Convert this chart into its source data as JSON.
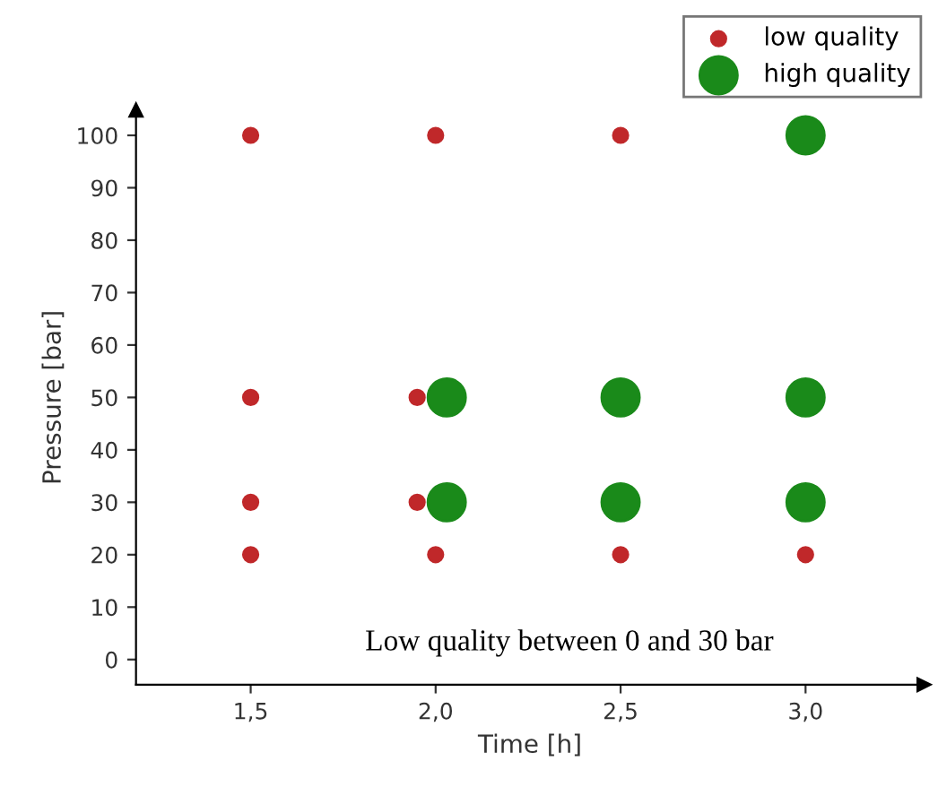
{
  "chart_data": {
    "type": "scatter",
    "xlabel": "Time [h]",
    "ylabel": "Pressure [bar]",
    "xlim": [
      1.19,
      3.32
    ],
    "ylim": [
      -4.8,
      104.8
    ],
    "xticks": [
      {
        "value": 1.5,
        "label": "1,5"
      },
      {
        "value": 2.0,
        "label": "2,0"
      },
      {
        "value": 2.5,
        "label": "2,5"
      },
      {
        "value": 3.0,
        "label": "3,0"
      }
    ],
    "yticks": [
      0,
      10,
      20,
      30,
      40,
      50,
      60,
      70,
      80,
      90,
      100
    ],
    "series": [
      {
        "name": "low quality",
        "color": "#c0282a",
        "x": [
          1.5,
          2.0,
          2.5,
          1.5,
          1.95,
          1.5,
          1.95,
          1.5,
          2.0,
          2.5,
          3.0
        ],
        "values": [
          100,
          100,
          100,
          50,
          50,
          30,
          30,
          20,
          20,
          20,
          20
        ]
      },
      {
        "name": "high quality",
        "color": "#1a8a1a",
        "x": [
          3.0,
          2.03,
          2.5,
          3.0,
          2.03,
          2.5,
          3.0
        ],
        "values": [
          100,
          50,
          50,
          50,
          30,
          30,
          30
        ]
      }
    ],
    "annotations": [
      "Low quality between 0 and 30 bar"
    ],
    "legend": "top right",
    "grid": false,
    "marker": "circle"
  }
}
